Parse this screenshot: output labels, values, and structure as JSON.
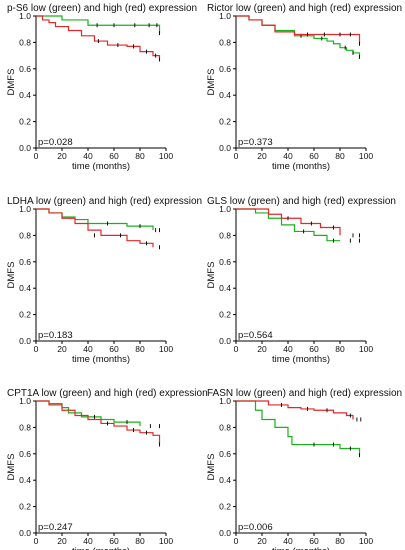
{
  "colors": {
    "low": "#1ab21a",
    "high": "#e0292b",
    "axis": "#000000",
    "censor": "#111111"
  },
  "chart_data": [
    {
      "type": "line",
      "title": "p-S6 low (green) and high (red) expression",
      "xlabel": "time (months)",
      "ylabel": "DMFS",
      "annotation": "p=0.028",
      "xlim": [
        0,
        100
      ],
      "ylim": [
        0.0,
        1.0
      ],
      "xticks": [
        "0",
        "20",
        "40",
        "60",
        "80",
        "100"
      ],
      "yticks": [
        "0.0",
        "0.2",
        "0.4",
        "0.6",
        "0.8",
        "1.0"
      ],
      "grid": false,
      "series": [
        {
          "color": "low",
          "x": [
            0,
            10,
            20,
            30,
            40,
            55,
            70,
            85,
            92,
            95
          ],
          "y": [
            1.0,
            1.0,
            0.97,
            0.97,
            0.93,
            0.93,
            0.93,
            0.93,
            0.93,
            0.87
          ],
          "censored": [
            [
              47,
              0.93
            ],
            [
              60,
              0.93
            ],
            [
              76,
              0.93
            ],
            [
              87,
              0.93
            ],
            [
              93,
              0.93
            ],
            [
              95,
              0.87
            ]
          ]
        },
        {
          "color": "high",
          "x": [
            0,
            5,
            10,
            15,
            25,
            35,
            45,
            55,
            70,
            80,
            90,
            95
          ],
          "y": [
            1.0,
            0.97,
            0.95,
            0.92,
            0.89,
            0.85,
            0.81,
            0.78,
            0.77,
            0.73,
            0.7,
            0.67
          ],
          "censored": [
            [
              48,
              0.81
            ],
            [
              63,
              0.78
            ],
            [
              75,
              0.77
            ],
            [
              85,
              0.73
            ],
            [
              92,
              0.7
            ],
            [
              95,
              0.67
            ]
          ]
        }
      ]
    },
    {
      "type": "line",
      "title": "Rictor low (green) and high (red) expression",
      "xlabel": "time (months)",
      "ylabel": "DMFS",
      "annotation": "p=0.373",
      "xlim": [
        0,
        100
      ],
      "ylim": [
        0.0,
        1.0
      ],
      "xticks": [
        "0",
        "20",
        "40",
        "60",
        "80",
        "100"
      ],
      "yticks": [
        "0.0",
        "0.2",
        "0.4",
        "0.6",
        "0.8",
        "1.0"
      ],
      "grid": false,
      "series": [
        {
          "color": "low",
          "x": [
            0,
            10,
            20,
            30,
            45,
            60,
            70,
            75,
            80,
            85,
            90,
            95
          ],
          "y": [
            1.0,
            0.97,
            0.93,
            0.89,
            0.85,
            0.83,
            0.81,
            0.79,
            0.76,
            0.74,
            0.72,
            0.69
          ],
          "censored": [
            [
              50,
              0.85
            ],
            [
              66,
              0.83
            ],
            [
              84,
              0.76
            ],
            [
              90,
              0.72
            ],
            [
              95,
              0.69
            ]
          ]
        },
        {
          "color": "high",
          "x": [
            0,
            10,
            20,
            30,
            45,
            60,
            95
          ],
          "y": [
            1.0,
            0.97,
            0.93,
            0.88,
            0.86,
            0.86,
            0.79
          ],
          "censored": [
            [
              55,
              0.86
            ],
            [
              68,
              0.86
            ],
            [
              80,
              0.86
            ],
            [
              88,
              0.86
            ],
            [
              95,
              0.79
            ]
          ]
        }
      ]
    },
    {
      "type": "line",
      "title": "LDHA low (green) and high (red) expression",
      "xlabel": "time (months)",
      "ylabel": "DMFS",
      "annotation": "p=0.183",
      "xlim": [
        0,
        100
      ],
      "ylim": [
        0.0,
        1.0
      ],
      "xticks": [
        "0",
        "20",
        "40",
        "60",
        "80",
        "100"
      ],
      "yticks": [
        "0.0",
        "0.2",
        "0.4",
        "0.6",
        "0.8",
        "1.0"
      ],
      "grid": false,
      "series": [
        {
          "color": "low",
          "x": [
            0,
            10,
            20,
            30,
            40,
            70,
            90
          ],
          "y": [
            1.0,
            0.97,
            0.94,
            0.92,
            0.89,
            0.87,
            0.84
          ],
          "censored": [
            [
              55,
              0.89
            ],
            [
              80,
              0.87
            ],
            [
              92,
              0.84
            ],
            [
              95,
              0.84
            ]
          ]
        },
        {
          "color": "high",
          "x": [
            0,
            10,
            20,
            30,
            40,
            50,
            60,
            70,
            80,
            90
          ],
          "y": [
            1.0,
            0.97,
            0.93,
            0.89,
            0.84,
            0.8,
            0.8,
            0.76,
            0.74,
            0.71
          ],
          "censored": [
            [
              45,
              0.8
            ],
            [
              65,
              0.8
            ],
            [
              85,
              0.74
            ],
            [
              95,
              0.71
            ]
          ]
        }
      ]
    },
    {
      "type": "line",
      "title": "GLS low (green) and high (red) expression",
      "xlabel": "time (months)",
      "ylabel": "DMFS",
      "annotation": "p=0.564",
      "xlim": [
        0,
        100
      ],
      "ylim": [
        0.0,
        1.0
      ],
      "xticks": [
        "0",
        "20",
        "40",
        "60",
        "80",
        "100"
      ],
      "yticks": [
        "0.0",
        "0.2",
        "0.4",
        "0.6",
        "0.8",
        "1.0"
      ],
      "grid": false,
      "series": [
        {
          "color": "low",
          "x": [
            0,
            15,
            25,
            35,
            45,
            60,
            70,
            80
          ],
          "y": [
            1.0,
            0.97,
            0.93,
            0.88,
            0.83,
            0.8,
            0.76,
            0.76
          ],
          "censored": [
            [
              52,
              0.83
            ],
            [
              75,
              0.76
            ],
            [
              88,
              0.76
            ],
            [
              95,
              0.76
            ]
          ]
        },
        {
          "color": "high",
          "x": [
            0,
            10,
            25,
            35,
            50,
            65,
            80
          ],
          "y": [
            1.0,
            1.0,
            0.96,
            0.93,
            0.89,
            0.86,
            0.8
          ],
          "censored": [
            [
              40,
              0.93
            ],
            [
              58,
              0.89
            ],
            [
              75,
              0.86
            ],
            [
              90,
              0.8
            ],
            [
              95,
              0.8
            ]
          ]
        }
      ]
    },
    {
      "type": "line",
      "title": "CPT1A low (green) and high (red) expression",
      "xlabel": "time (months)",
      "ylabel": "DMFS",
      "annotation": "p=0.247",
      "xlim": [
        0,
        100
      ],
      "ylim": [
        0.0,
        1.0
      ],
      "xticks": [
        "0",
        "20",
        "40",
        "60",
        "80",
        "100"
      ],
      "yticks": [
        "0.0",
        "0.2",
        "0.4",
        "0.6",
        "0.8",
        "1.0"
      ],
      "grid": false,
      "series": [
        {
          "color": "low",
          "x": [
            0,
            10,
            20,
            25,
            35,
            50,
            60,
            80
          ],
          "y": [
            1.0,
            0.98,
            0.95,
            0.91,
            0.88,
            0.86,
            0.84,
            0.81
          ],
          "censored": [
            [
              45,
              0.88
            ],
            [
              70,
              0.84
            ],
            [
              88,
              0.81
            ],
            [
              95,
              0.81
            ]
          ]
        },
        {
          "color": "high",
          "x": [
            0,
            10,
            20,
            30,
            40,
            50,
            60,
            70,
            80,
            90,
            95
          ],
          "y": [
            1.0,
            0.97,
            0.93,
            0.89,
            0.86,
            0.83,
            0.81,
            0.78,
            0.76,
            0.74,
            0.67
          ],
          "censored": [
            [
              55,
              0.83
            ],
            [
              75,
              0.78
            ],
            [
              85,
              0.76
            ],
            [
              95,
              0.67
            ]
          ]
        }
      ]
    },
    {
      "type": "line",
      "title": "FASN low (green) and high (red) expression",
      "xlabel": "time (months)",
      "ylabel": "DMFS",
      "annotation": "p=0.006",
      "xlim": [
        0,
        100
      ],
      "ylim": [
        0.0,
        1.0
      ],
      "xticks": [
        "0",
        "20",
        "40",
        "60",
        "80",
        "100"
      ],
      "yticks": [
        "0.0",
        "0.2",
        "0.4",
        "0.6",
        "0.8",
        "1.0"
      ],
      "grid": false,
      "series": [
        {
          "color": "low",
          "x": [
            0,
            15,
            20,
            30,
            40,
            43,
            80,
            95
          ],
          "y": [
            1.0,
            0.93,
            0.86,
            0.8,
            0.73,
            0.67,
            0.64,
            0.59
          ],
          "censored": [
            [
              60,
              0.67
            ],
            [
              75,
              0.67
            ],
            [
              88,
              0.64
            ],
            [
              95,
              0.59
            ]
          ]
        },
        {
          "color": "high",
          "x": [
            0,
            25,
            40,
            50,
            60,
            75,
            85,
            90
          ],
          "y": [
            1.0,
            0.97,
            0.95,
            0.94,
            0.93,
            0.91,
            0.89,
            0.86
          ],
          "censored": [
            [
              35,
              0.97
            ],
            [
              55,
              0.94
            ],
            [
              70,
              0.93
            ],
            [
              88,
              0.89
            ],
            [
              93,
              0.86
            ],
            [
              96,
              0.86
            ]
          ]
        }
      ]
    }
  ]
}
